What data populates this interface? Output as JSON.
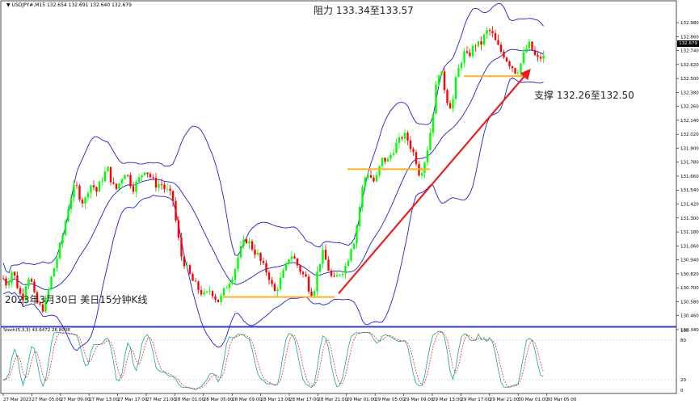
{
  "window": {
    "symbol_header": "USDJPY#,M15  132.654 132.691 132.640 132.679",
    "menu_icon": "triangle-down-icon"
  },
  "annotations": {
    "resistance": "阻力 133.34至133.57",
    "support": "支撑 132.26至132.50",
    "chart_caption": "2023年3月30日 美日15分钟K线"
  },
  "price_axis": {
    "labels": [
      "132.980",
      "132.860",
      "132.740",
      "132.620",
      "132.500",
      "132.380",
      "132.260",
      "132.140",
      "132.020",
      "131.900",
      "131.780",
      "131.660",
      "131.540",
      "131.420",
      "131.300",
      "131.180",
      "131.060",
      "130.940",
      "130.820",
      "130.700",
      "130.580",
      "130.460",
      "130.340"
    ],
    "current_price": "132.679"
  },
  "time_axis": {
    "labels": [
      "27 Mar 2023",
      "27 Mar 05:00",
      "27 Mar 09:00",
      "27 Mar 13:00",
      "27 Mar 17:00",
      "27 Mar 21:00",
      "28 Mar 01:00",
      "28 Mar 05:00",
      "28 Mar 09:00",
      "28 Mar 13:00",
      "28 Mar 17:00",
      "28 Mar 21:00",
      "29 Mar 01:00",
      "29 Mar 05:00",
      "29 Mar 09:00",
      "29 Mar 13:00",
      "29 Mar 17:00",
      "29 Mar 21:00",
      "30 Mar 01:00",
      "30 Mar 05:00"
    ]
  },
  "stoch_panel": {
    "label": "Stoch(5,3,3) 43.6472 26.8008",
    "levels": [
      "100",
      "80",
      "20",
      "0"
    ]
  },
  "colors": {
    "bull": "#00ff00",
    "bear": "#ff0000",
    "bollinger": "#2020c8",
    "support_line": "#ffb020",
    "trend_arrow": "#e82020",
    "stoch_main": "#20a0a0",
    "stoch_signal": "#e03030"
  },
  "chart_data": {
    "type": "candlestick",
    "symbol": "USDJPY",
    "timeframe": "M15",
    "ohlc_header": {
      "open": 132.654,
      "high": 132.691,
      "low": 132.64,
      "close": 132.679
    },
    "ylim": [
      130.34,
      133.04
    ],
    "close_path": [
      [
        0,
        130.78
      ],
      [
        5,
        130.72
      ],
      [
        10,
        130.85
      ],
      [
        15,
        130.78
      ],
      [
        20,
        130.65
      ],
      [
        25,
        130.62
      ],
      [
        30,
        130.82
      ],
      [
        35,
        130.74
      ],
      [
        40,
        130.58
      ],
      [
        45,
        130.54
      ],
      [
        50,
        130.52
      ],
      [
        55,
        130.65
      ],
      [
        60,
        130.8
      ],
      [
        65,
        130.92
      ],
      [
        70,
        131.05
      ],
      [
        75,
        131.2
      ],
      [
        80,
        131.38
      ],
      [
        85,
        131.52
      ],
      [
        90,
        131.58
      ],
      [
        95,
        131.48
      ],
      [
        100,
        131.42
      ],
      [
        105,
        131.55
      ],
      [
        110,
        131.6
      ],
      [
        115,
        131.52
      ],
      [
        120,
        131.6
      ],
      [
        125,
        131.68
      ],
      [
        130,
        131.72
      ],
      [
        135,
        131.58
      ],
      [
        140,
        131.55
      ],
      [
        145,
        131.62
      ],
      [
        150,
        131.7
      ],
      [
        155,
        131.65
      ],
      [
        160,
        131.55
      ],
      [
        165,
        131.6
      ],
      [
        170,
        131.66
      ],
      [
        175,
        131.72
      ],
      [
        180,
        131.68
      ],
      [
        185,
        131.62
      ],
      [
        190,
        131.58
      ],
      [
        195,
        131.6
      ],
      [
        200,
        131.55
      ],
      [
        205,
        131.52
      ],
      [
        210,
        131.45
      ],
      [
        215,
        131.2
      ],
      [
        220,
        130.98
      ],
      [
        225,
        130.9
      ],
      [
        230,
        130.82
      ],
      [
        235,
        130.75
      ],
      [
        240,
        130.7
      ],
      [
        245,
        130.66
      ],
      [
        250,
        130.62
      ],
      [
        255,
        130.68
      ],
      [
        260,
        130.65
      ],
      [
        265,
        130.58
      ],
      [
        270,
        130.62
      ],
      [
        275,
        130.7
      ],
      [
        280,
        130.76
      ],
      [
        285,
        130.82
      ],
      [
        290,
        130.95
      ],
      [
        295,
        131.05
      ],
      [
        300,
        131.12
      ],
      [
        305,
        131.08
      ],
      [
        310,
        131.02
      ],
      [
        315,
        130.98
      ],
      [
        320,
        130.9
      ],
      [
        325,
        130.85
      ],
      [
        330,
        130.78
      ],
      [
        335,
        130.65
      ],
      [
        340,
        130.72
      ],
      [
        345,
        130.8
      ],
      [
        350,
        130.88
      ],
      [
        355,
        131.0
      ],
      [
        360,
        130.95
      ],
      [
        365,
        130.88
      ],
      [
        370,
        130.82
      ],
      [
        375,
        130.78
      ],
      [
        380,
        130.65
      ],
      [
        385,
        130.7
      ],
      [
        390,
        130.88
      ],
      [
        395,
        131.0
      ],
      [
        400,
        130.92
      ],
      [
        405,
        130.8
      ],
      [
        410,
        130.76
      ],
      [
        415,
        130.82
      ],
      [
        420,
        130.85
      ],
      [
        425,
        130.9
      ],
      [
        430,
        131.05
      ],
      [
        435,
        131.12
      ],
      [
        440,
        131.35
      ],
      [
        445,
        131.58
      ],
      [
        450,
        131.7
      ],
      [
        455,
        131.65
      ],
      [
        460,
        131.6
      ],
      [
        465,
        131.72
      ],
      [
        470,
        131.82
      ],
      [
        475,
        131.78
      ],
      [
        480,
        131.85
      ],
      [
        485,
        131.92
      ],
      [
        490,
        131.96
      ],
      [
        495,
        132.02
      ],
      [
        500,
        131.98
      ],
      [
        505,
        131.9
      ],
      [
        510,
        131.82
      ],
      [
        515,
        131.68
      ],
      [
        520,
        131.75
      ],
      [
        525,
        131.9
      ],
      [
        530,
        132.1
      ],
      [
        535,
        132.4
      ],
      [
        540,
        132.6
      ],
      [
        545,
        132.45
      ],
      [
        550,
        132.3
      ],
      [
        555,
        132.25
      ],
      [
        560,
        132.48
      ],
      [
        565,
        132.62
      ],
      [
        570,
        132.72
      ],
      [
        575,
        132.68
      ],
      [
        580,
        132.75
      ],
      [
        585,
        132.8
      ],
      [
        590,
        132.78
      ],
      [
        595,
        132.86
      ],
      [
        600,
        132.92
      ],
      [
        605,
        132.88
      ],
      [
        610,
        132.8
      ],
      [
        615,
        132.74
      ],
      [
        620,
        132.7
      ],
      [
        625,
        132.64
      ],
      [
        630,
        132.6
      ],
      [
        635,
        132.55
      ],
      [
        640,
        132.62
      ],
      [
        645,
        132.72
      ],
      [
        650,
        132.8
      ],
      [
        655,
        132.74
      ],
      [
        660,
        132.66
      ],
      [
        665,
        132.68
      ],
      [
        670,
        132.679
      ]
    ]
  }
}
